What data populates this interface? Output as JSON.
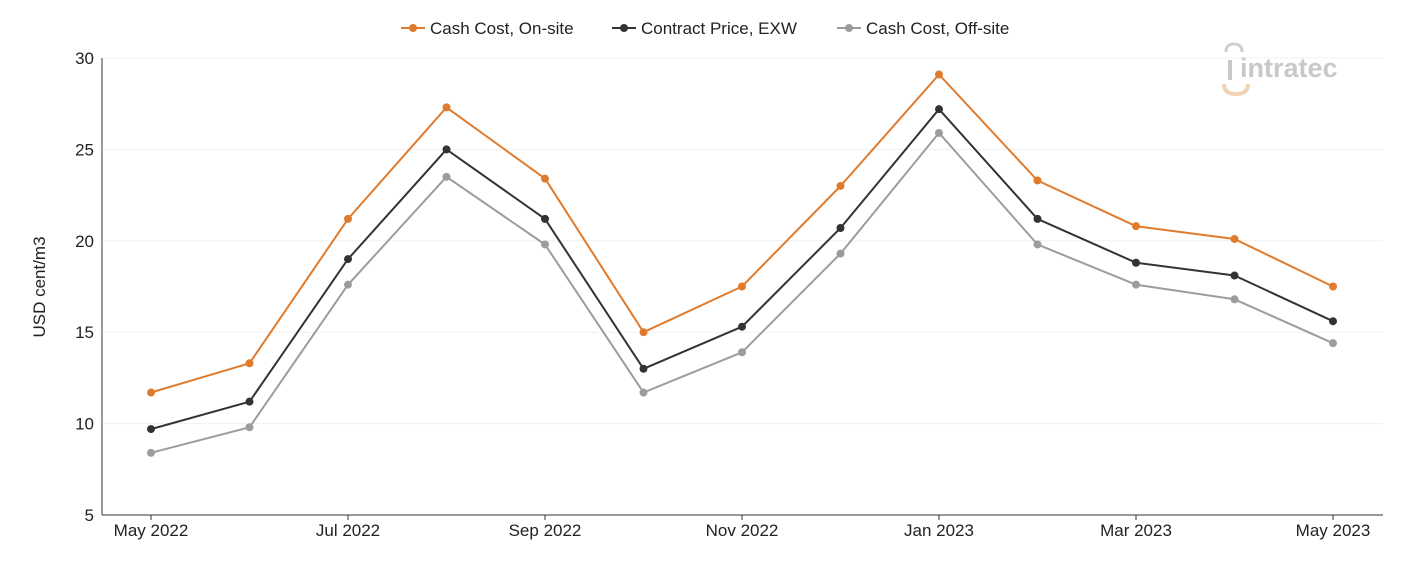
{
  "chart_data": {
    "type": "line",
    "ylabel": "USD cent/m3",
    "ylim": [
      5,
      30
    ],
    "yticks": [
      5,
      10,
      15,
      20,
      25,
      30
    ],
    "grid": "horizontal",
    "legend_position": "top-center",
    "x_labels": [
      "May 2022",
      "Jul 2022",
      "Sep 2022",
      "Nov 2022",
      "Jan 2023",
      "Mar 2023",
      "May 2023"
    ],
    "x": [
      "May 2022",
      "Jun 2022",
      "Jul 2022",
      "Aug 2022",
      "Sep 2022",
      "Oct 2022",
      "Nov 2022",
      "Dec 2022",
      "Jan 2023",
      "Feb 2023",
      "Mar 2023",
      "Apr 2023",
      "May 2023"
    ],
    "series": [
      {
        "name": "Cash Cost, On-site",
        "color": "#e07b2d",
        "values": [
          11.7,
          13.3,
          21.2,
          27.3,
          23.4,
          15.0,
          17.5,
          23.0,
          29.1,
          23.3,
          20.8,
          20.1,
          17.5
        ]
      },
      {
        "name": "Contract Price, EXW",
        "color": "#333333",
        "values": [
          9.7,
          11.2,
          19.0,
          25.0,
          21.2,
          13.0,
          15.3,
          20.7,
          27.2,
          21.2,
          18.8,
          18.1,
          15.6
        ]
      },
      {
        "name": "Cash Cost, Off-site",
        "color": "#9c9c9c",
        "values": [
          8.4,
          9.8,
          17.6,
          23.5,
          19.8,
          11.7,
          13.9,
          19.3,
          25.9,
          19.8,
          17.6,
          16.8,
          14.4
        ]
      }
    ]
  },
  "watermark": {
    "text": "intratec",
    "color": "#c8c8c8",
    "accent_color": "#f0d2b4"
  }
}
